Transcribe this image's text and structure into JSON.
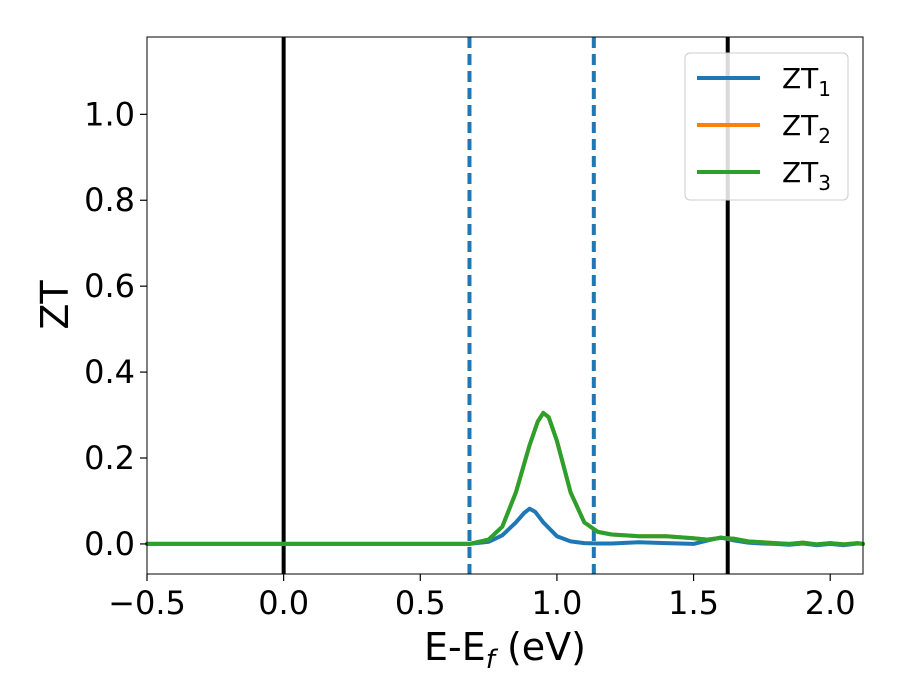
{
  "chart_data": {
    "type": "line",
    "xlabel": "E-E",
    "xlabel_sub": "f",
    "xlabel_unit": " (eV)",
    "ylabel": "ZT",
    "xlim": [
      -0.5,
      2.12
    ],
    "ylim": [
      -0.07,
      1.18
    ],
    "xticks": [
      -0.5,
      0.0,
      0.5,
      1.0,
      1.5,
      2.0
    ],
    "xtick_labels": [
      "−0.5",
      "0.0",
      "0.5",
      "1.0",
      "1.5",
      "2.0"
    ],
    "yticks": [
      0.0,
      0.2,
      0.4,
      0.6,
      0.8,
      1.0
    ],
    "ytick_labels": [
      "0.0",
      "0.2",
      "0.4",
      "0.6",
      "0.8",
      "1.0"
    ],
    "grid": false,
    "legend_position": "top-right",
    "vertical_lines": [
      {
        "x": 0.0,
        "style": "solid",
        "color": "#000000"
      },
      {
        "x": 1.625,
        "style": "solid",
        "color": "#000000"
      },
      {
        "x": 0.68,
        "style": "dashed",
        "color": "#1f77b4"
      },
      {
        "x": 1.135,
        "style": "dashed",
        "color": "#1f77b4"
      }
    ],
    "series": [
      {
        "name": "ZT",
        "name_sub": "1",
        "color": "#1f77b4",
        "x": [
          -0.5,
          0.0,
          0.5,
          0.68,
          0.75,
          0.8,
          0.85,
          0.88,
          0.9,
          0.92,
          0.95,
          1.0,
          1.05,
          1.1,
          1.15,
          1.2,
          1.3,
          1.4,
          1.5,
          1.55,
          1.6,
          1.65,
          1.7,
          1.75,
          1.8,
          1.85,
          1.9,
          1.95,
          2.0,
          2.05,
          2.1,
          2.12
        ],
        "y": [
          0.0,
          0.0,
          0.0,
          0.0,
          0.005,
          0.02,
          0.05,
          0.072,
          0.082,
          0.075,
          0.05,
          0.018,
          0.006,
          0.002,
          0.001,
          0.001,
          0.004,
          0.002,
          0.0,
          0.008,
          0.015,
          0.008,
          0.003,
          0.001,
          0.0,
          -0.002,
          0.001,
          -0.003,
          0.0,
          -0.003,
          0.001,
          0.0
        ]
      },
      {
        "name": "ZT",
        "name_sub": "2",
        "color": "#ff7f0e",
        "x": [
          -0.5,
          0.0,
          0.5,
          0.68,
          0.75,
          0.8,
          0.85,
          0.9,
          0.93,
          0.95,
          0.97,
          1.0,
          1.05,
          1.1,
          1.15,
          1.2,
          1.3,
          1.4,
          1.5,
          1.55,
          1.6,
          1.65,
          1.7,
          1.75,
          1.8,
          1.85,
          1.9,
          1.95,
          2.0,
          2.05,
          2.1,
          2.12
        ],
        "y": [
          0.0,
          0.0,
          0.0,
          0.0,
          0.01,
          0.04,
          0.12,
          0.23,
          0.285,
          0.305,
          0.295,
          0.24,
          0.12,
          0.05,
          0.028,
          0.022,
          0.018,
          0.018,
          0.013,
          0.01,
          0.014,
          0.012,
          0.006,
          0.004,
          0.002,
          0.0,
          0.003,
          -0.001,
          0.002,
          -0.001,
          0.002,
          0.0
        ]
      },
      {
        "name": "ZT",
        "name_sub": "3",
        "color": "#2ca02c",
        "x": [
          -0.5,
          0.0,
          0.5,
          0.68,
          0.75,
          0.8,
          0.85,
          0.9,
          0.93,
          0.95,
          0.97,
          1.0,
          1.05,
          1.1,
          1.15,
          1.2,
          1.3,
          1.4,
          1.5,
          1.55,
          1.6,
          1.65,
          1.7,
          1.75,
          1.8,
          1.85,
          1.9,
          1.95,
          2.0,
          2.05,
          2.1,
          2.12
        ],
        "y": [
          0.0,
          0.0,
          0.0,
          0.0,
          0.01,
          0.04,
          0.12,
          0.23,
          0.285,
          0.305,
          0.295,
          0.24,
          0.12,
          0.05,
          0.028,
          0.022,
          0.018,
          0.018,
          0.013,
          0.01,
          0.014,
          0.012,
          0.006,
          0.004,
          0.002,
          0.0,
          0.003,
          -0.001,
          0.002,
          -0.001,
          0.002,
          0.0
        ]
      }
    ]
  }
}
